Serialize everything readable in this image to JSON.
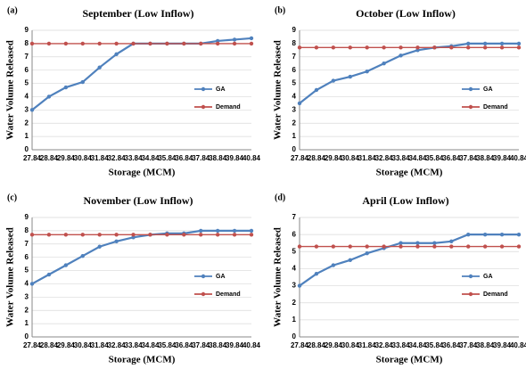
{
  "chart_data": [
    {
      "type": "line",
      "panel_label": "(a)",
      "title": "September (Low Inflow)",
      "x_label": "Storage (MCM)",
      "y_label": "Water Volume Released",
      "categories": [
        "27.84",
        "28.84",
        "29.84",
        "30.84",
        "31.84",
        "32.84",
        "33.84",
        "34.84",
        "35.84",
        "36.84",
        "37.84",
        "38.84",
        "39.84",
        "40.84"
      ],
      "series": [
        {
          "name": "GA",
          "color": "#4f81bd",
          "values": [
            3,
            4.0,
            4.7,
            5.1,
            6.2,
            7.2,
            8,
            8,
            8,
            8,
            8,
            8.2,
            8.3,
            8.4
          ]
        },
        {
          "name": "Demand",
          "color": "#c0504d",
          "values": [
            8,
            8,
            8,
            8,
            8,
            8,
            8,
            8,
            8,
            8,
            8,
            8,
            8,
            8
          ]
        }
      ],
      "ylim": [
        0,
        9
      ],
      "yticks": [
        0,
        1,
        2,
        3,
        4,
        5,
        6,
        7,
        8,
        9
      ],
      "grid": true,
      "legend": "right"
    },
    {
      "type": "line",
      "panel_label": "(b)",
      "title": "October (Low Inflow)",
      "x_label": "Storage (MCM)",
      "y_label": "Water Volume Released",
      "categories": [
        "27.84",
        "28.84",
        "29.84",
        "30.84",
        "31.84",
        "32.84",
        "33.84",
        "34.84",
        "35.84",
        "36.84",
        "37.84",
        "38.84",
        "39.84",
        "40.84"
      ],
      "series": [
        {
          "name": "GA",
          "color": "#4f81bd",
          "values": [
            3.5,
            4.5,
            5.2,
            5.5,
            5.9,
            6.5,
            7.1,
            7.5,
            7.7,
            7.8,
            8,
            8,
            8,
            8
          ]
        },
        {
          "name": "Demand",
          "color": "#c0504d",
          "values": [
            7.7,
            7.7,
            7.7,
            7.7,
            7.7,
            7.7,
            7.7,
            7.7,
            7.7,
            7.7,
            7.7,
            7.7,
            7.7,
            7.7
          ]
        }
      ],
      "ylim": [
        0,
        9
      ],
      "yticks": [
        0,
        1,
        2,
        3,
        4,
        5,
        6,
        7,
        8,
        9
      ],
      "grid": true,
      "legend": "right"
    },
    {
      "type": "line",
      "panel_label": "(c)",
      "title": "November (Low Inflow)",
      "x_label": "Storage (MCM)",
      "y_label": "Water Volume Released",
      "categories": [
        "27.84",
        "28.84",
        "29.84",
        "30.84",
        "31.84",
        "32.84",
        "33.84",
        "34.84",
        "35.84",
        "36.84",
        "37.84",
        "38.84",
        "39.84",
        "40.84"
      ],
      "series": [
        {
          "name": "GA",
          "color": "#4f81bd",
          "values": [
            4,
            4.7,
            5.4,
            6.1,
            6.8,
            7.2,
            7.5,
            7.7,
            7.8,
            7.8,
            8,
            8,
            8,
            8
          ]
        },
        {
          "name": "Demand",
          "color": "#c0504d",
          "values": [
            7.7,
            7.7,
            7.7,
            7.7,
            7.7,
            7.7,
            7.7,
            7.7,
            7.7,
            7.7,
            7.7,
            7.7,
            7.7,
            7.7
          ]
        }
      ],
      "ylim": [
        0,
        9
      ],
      "yticks": [
        0,
        1,
        2,
        3,
        4,
        5,
        6,
        7,
        8,
        9
      ],
      "grid": true,
      "legend": "right"
    },
    {
      "type": "line",
      "panel_label": "(d)",
      "title": "April (Low Inflow)",
      "x_label": "Storage (MCM)",
      "y_label": "Water Volume Released",
      "categories": [
        "27.84",
        "28.84",
        "29.84",
        "30.84",
        "31.84",
        "32.84",
        "33.84",
        "34.84",
        "35.84",
        "36.84",
        "37.84",
        "38.84",
        "39.84",
        "40.84"
      ],
      "series": [
        {
          "name": "GA",
          "color": "#4f81bd",
          "values": [
            3,
            3.7,
            4.2,
            4.5,
            4.9,
            5.2,
            5.5,
            5.5,
            5.5,
            5.6,
            6,
            6,
            6,
            6
          ]
        },
        {
          "name": "Demand",
          "color": "#c0504d",
          "values": [
            5.3,
            5.3,
            5.3,
            5.3,
            5.3,
            5.3,
            5.3,
            5.3,
            5.3,
            5.3,
            5.3,
            5.3,
            5.3,
            5.3
          ]
        }
      ],
      "ylim": [
        0,
        7
      ],
      "yticks": [
        0,
        1,
        2,
        3,
        4,
        5,
        6,
        7
      ],
      "grid": true,
      "legend": "right"
    }
  ]
}
